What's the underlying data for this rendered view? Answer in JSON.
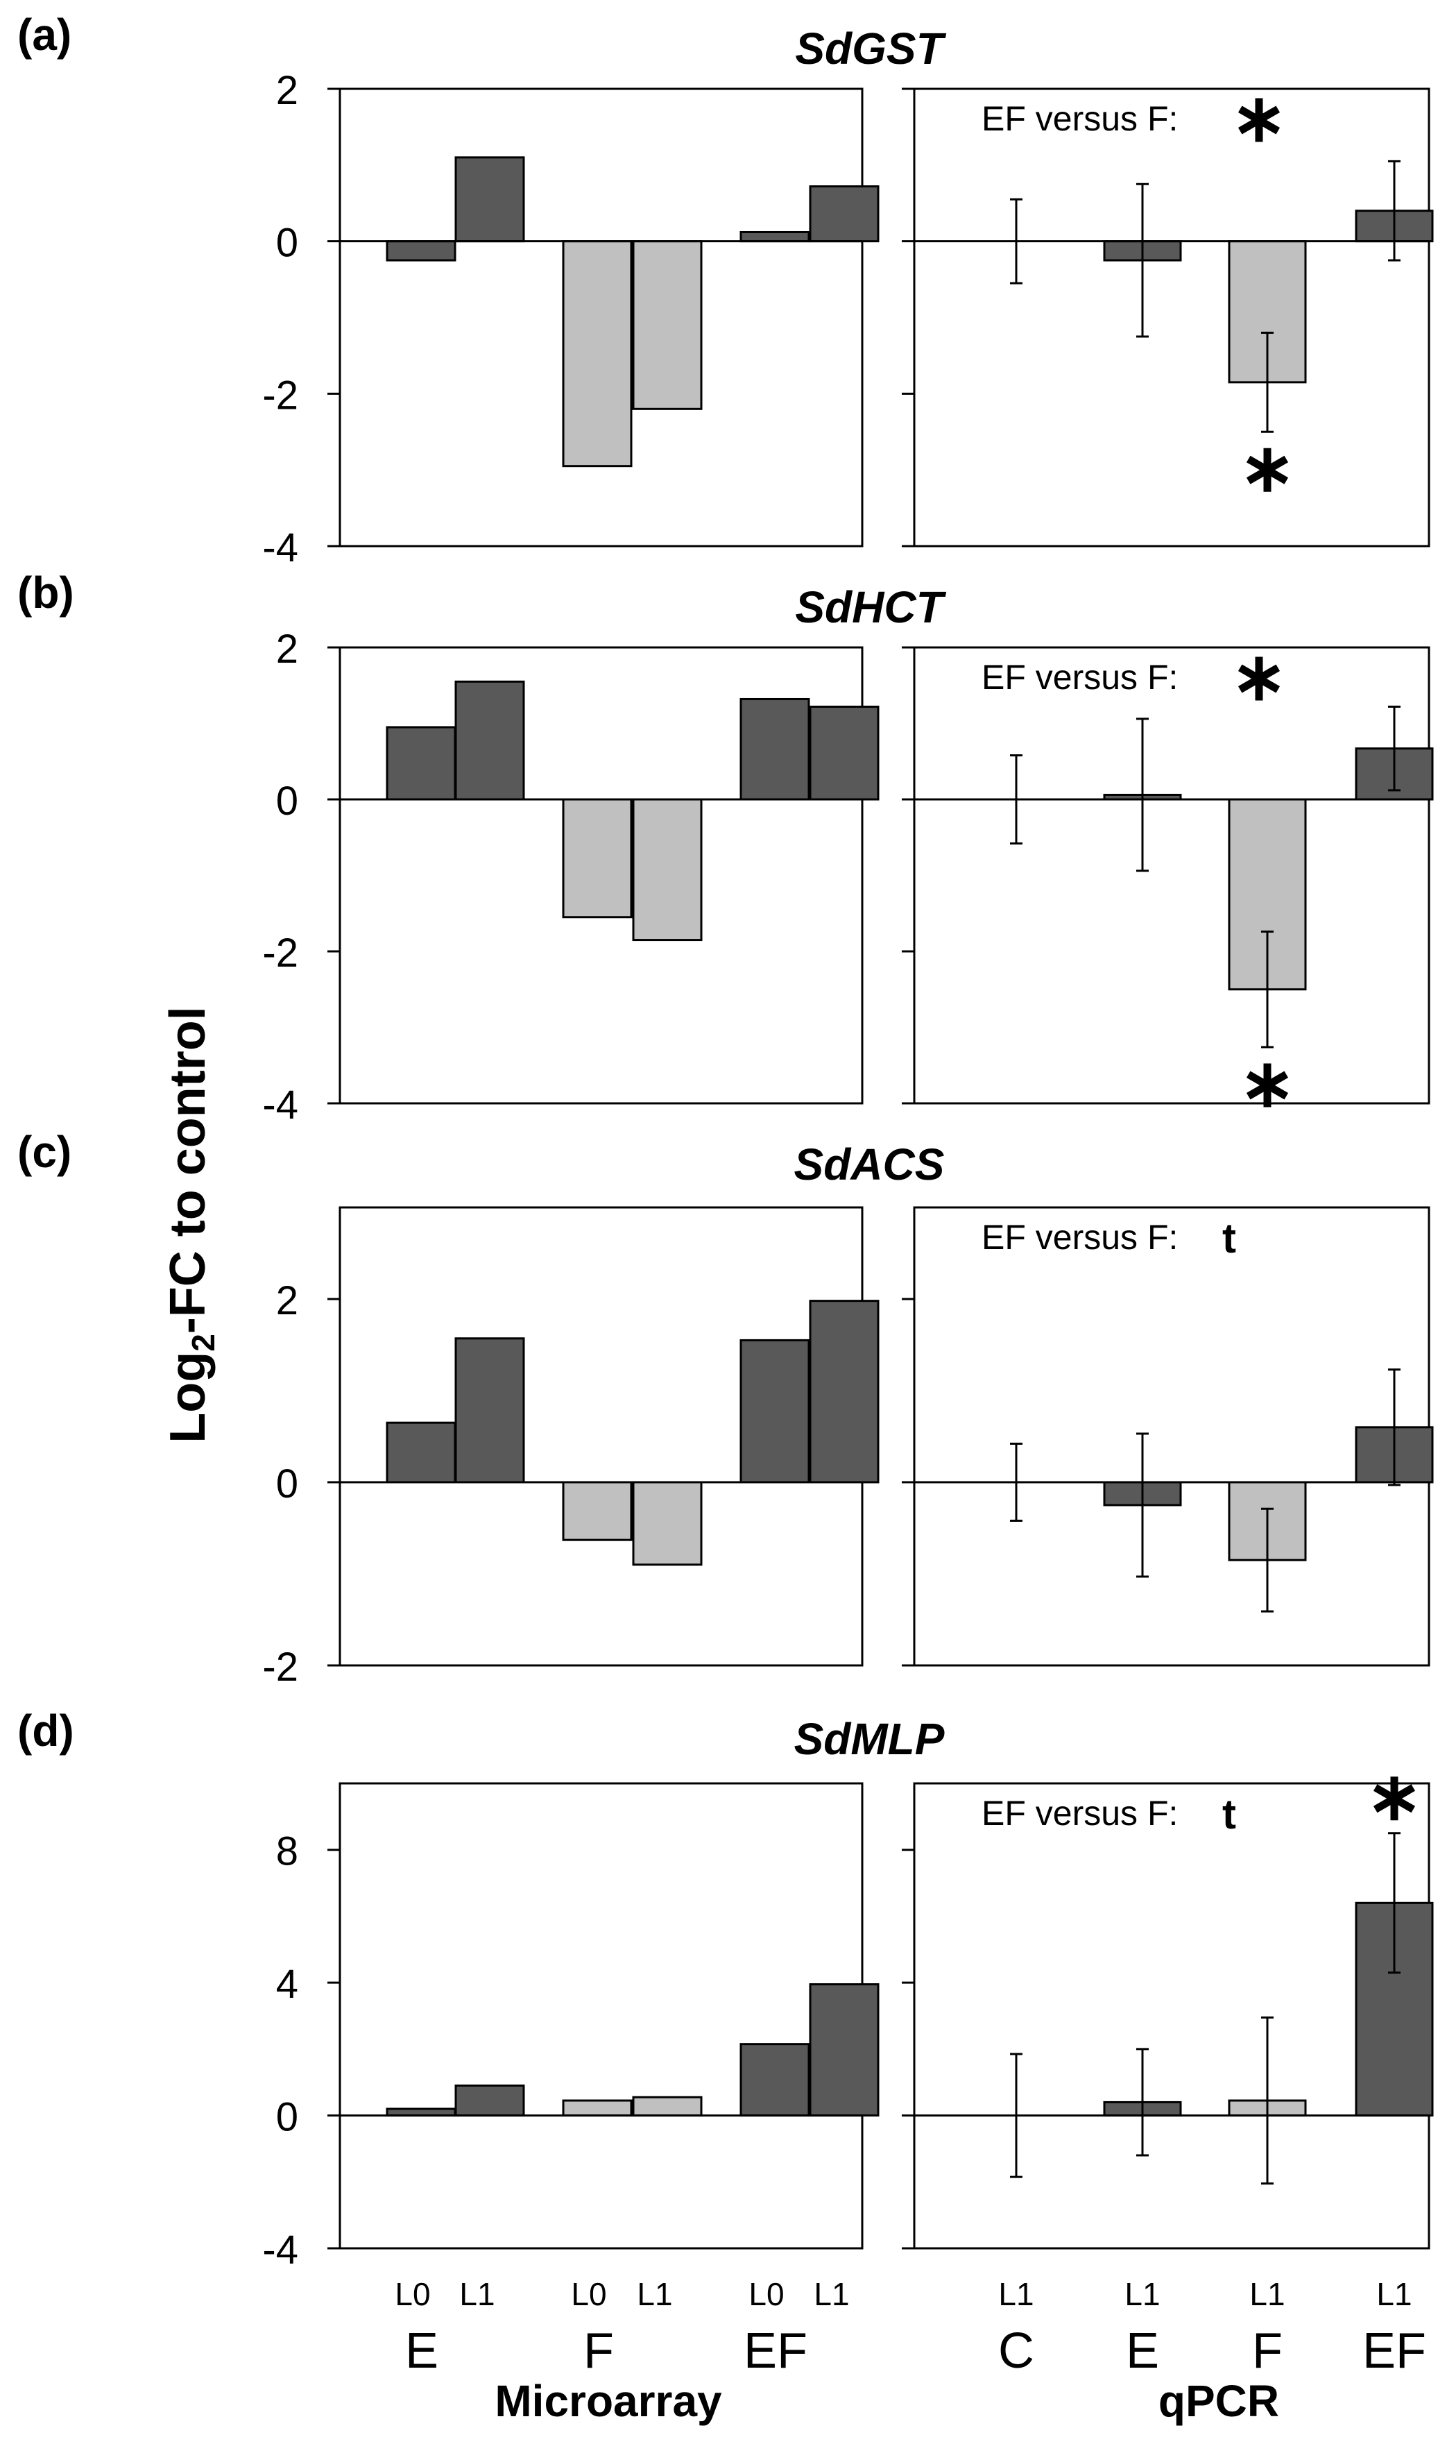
{
  "figure": {
    "ylabel": "Log2-FC to control",
    "panel_labels": [
      "(a)",
      "(b)",
      "(c)",
      "(d)"
    ],
    "titles": [
      "SdGST",
      "SdHCT",
      "SdACS",
      "SdMLP"
    ],
    "microarray_xlabel": "Microarray",
    "qpcr_xlabel": "qPCR",
    "microarray_lines": [
      "L0",
      "L1",
      "L0",
      "L1",
      "L0",
      "L1"
    ],
    "microarray_treatments": [
      "E",
      "F",
      "EF"
    ],
    "qpcr_lines": [
      "L1",
      "L1",
      "L1",
      "L1"
    ],
    "qpcr_treatments": [
      "C",
      "E",
      "F",
      "EF"
    ]
  },
  "colors": {
    "dark": "#595959",
    "light": "#c0c0c0",
    "frame": "#000000"
  },
  "chart_data": [
    {
      "type": "bar",
      "panel": "(a)",
      "title": "SdGST",
      "ylim": [
        -4,
        2
      ],
      "yticks": [
        -4,
        -2,
        0,
        2
      ],
      "microarray": {
        "categories": [
          "E L0",
          "E L1",
          "F L0",
          "F L1",
          "EF L0",
          "EF L1"
        ],
        "values": [
          -0.25,
          1.1,
          -2.95,
          -2.2,
          0.12,
          0.72
        ],
        "colors": [
          "dark",
          "dark",
          "light",
          "light",
          "dark",
          "dark"
        ]
      },
      "qpcr": {
        "categories": [
          "C L1",
          "E L1",
          "F L1",
          "EF L1"
        ],
        "values": [
          0,
          -0.25,
          -1.85,
          0.4
        ],
        "errors": [
          0.55,
          1.0,
          0.65,
          0.65
        ],
        "colors": [
          "none",
          "dark",
          "light",
          "dark"
        ],
        "comparison_text": "EF versus F:",
        "comparison_mark": "*",
        "bar_marks": [
          "",
          "",
          "*",
          ""
        ]
      }
    },
    {
      "type": "bar",
      "panel": "(b)",
      "title": "SdHCT",
      "ylim": [
        -4,
        2
      ],
      "yticks": [
        -4,
        -2,
        0,
        2
      ],
      "microarray": {
        "categories": [
          "E L0",
          "E L1",
          "F L0",
          "F L1",
          "EF L0",
          "EF L1"
        ],
        "values": [
          0.95,
          1.55,
          -1.55,
          -1.85,
          1.32,
          1.22
        ],
        "colors": [
          "dark",
          "dark",
          "light",
          "light",
          "dark",
          "dark"
        ]
      },
      "qpcr": {
        "categories": [
          "C L1",
          "E L1",
          "F L1",
          "EF L1"
        ],
        "values": [
          0,
          0.06,
          -2.5,
          0.67
        ],
        "errors": [
          0.58,
          1.0,
          0.76,
          0.55
        ],
        "colors": [
          "none",
          "dark",
          "light",
          "dark"
        ],
        "comparison_text": "EF versus F:",
        "comparison_mark": "*",
        "bar_marks": [
          "",
          "",
          "*",
          ""
        ]
      }
    },
    {
      "type": "bar",
      "panel": "(c)",
      "title": "SdACS",
      "ylim": [
        -2,
        3
      ],
      "yticks": [
        -2,
        0,
        2
      ],
      "microarray": {
        "categories": [
          "E L0",
          "E L1",
          "F L0",
          "F L1",
          "EF L0",
          "EF L1"
        ],
        "values": [
          0.65,
          1.57,
          -0.63,
          -0.9,
          1.55,
          1.98
        ],
        "colors": [
          "dark",
          "dark",
          "light",
          "light",
          "dark",
          "dark"
        ]
      },
      "qpcr": {
        "categories": [
          "C L1",
          "E L1",
          "F L1",
          "EF L1"
        ],
        "values": [
          0,
          -0.25,
          -0.85,
          0.6
        ],
        "errors": [
          0.42,
          0.78,
          0.56,
          0.63
        ],
        "colors": [
          "none",
          "dark",
          "light",
          "dark"
        ],
        "comparison_text": "EF versus F:",
        "comparison_mark": "t",
        "bar_marks": [
          "",
          "",
          "",
          ""
        ]
      }
    },
    {
      "type": "bar",
      "panel": "(d)",
      "title": "SdMLP",
      "ylim": [
        -4,
        10
      ],
      "yticks": [
        -4,
        0,
        4,
        8
      ],
      "microarray": {
        "categories": [
          "E L0",
          "E L1",
          "F L0",
          "F L1",
          "EF L0",
          "EF L1"
        ],
        "values": [
          0.2,
          0.9,
          0.45,
          0.55,
          2.15,
          3.95
        ],
        "colors": [
          "dark",
          "dark",
          "light",
          "light",
          "dark",
          "dark"
        ]
      },
      "qpcr": {
        "categories": [
          "C L1",
          "E L1",
          "F L1",
          "EF L1"
        ],
        "values": [
          0,
          0.4,
          0.45,
          6.4
        ],
        "errors": [
          1.85,
          1.6,
          2.5,
          2.1
        ],
        "colors": [
          "none",
          "dark",
          "light",
          "dark"
        ],
        "comparison_text": "EF versus F:",
        "comparison_mark": "t",
        "bar_marks": [
          "",
          "",
          "",
          "*"
        ]
      }
    }
  ]
}
